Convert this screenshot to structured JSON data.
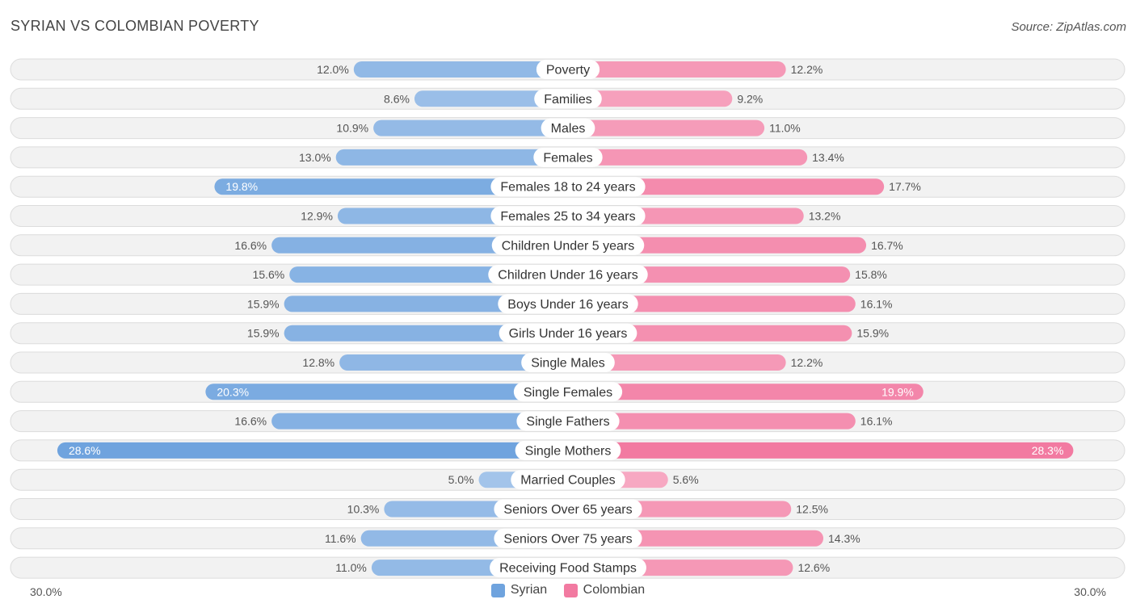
{
  "title": "SYRIAN VS COLOMBIAN POVERTY",
  "source": "Source: ZipAtlas.com",
  "axis": {
    "left_label": "30.0%",
    "right_label": "30.0%"
  },
  "colors": {
    "syrian": "#6fa3de",
    "colombian": "#f27aa1"
  },
  "chart_data": {
    "type": "bar",
    "orientation": "horizontal-diverging",
    "title": "SYRIAN VS COLOMBIAN POVERTY",
    "xlim": [
      0,
      30
    ],
    "unit": "%",
    "categories": [
      "Poverty",
      "Families",
      "Males",
      "Females",
      "Females 18 to 24 years",
      "Females 25 to 34 years",
      "Children Under 5 years",
      "Children Under 16 years",
      "Boys Under 16 years",
      "Girls Under 16 years",
      "Single Males",
      "Single Females",
      "Single Fathers",
      "Single Mothers",
      "Married Couples",
      "Seniors Over 65 years",
      "Seniors Over 75 years",
      "Receiving Food Stamps"
    ],
    "series": [
      {
        "name": "Syrian",
        "values": [
          12.0,
          8.6,
          10.9,
          13.0,
          19.8,
          12.9,
          16.6,
          15.6,
          15.9,
          15.9,
          12.8,
          20.3,
          16.6,
          28.6,
          5.0,
          10.3,
          11.6,
          11.0
        ],
        "labels": [
          "12.0%",
          "8.6%",
          "10.9%",
          "13.0%",
          "19.8%",
          "12.9%",
          "16.6%",
          "15.6%",
          "15.9%",
          "15.9%",
          "12.8%",
          "20.3%",
          "16.6%",
          "28.6%",
          "5.0%",
          "10.3%",
          "11.6%",
          "11.0%"
        ]
      },
      {
        "name": "Colombian",
        "values": [
          12.2,
          9.2,
          11.0,
          13.4,
          17.7,
          13.2,
          16.7,
          15.8,
          16.1,
          15.9,
          12.2,
          19.9,
          16.1,
          28.3,
          5.6,
          12.5,
          14.3,
          12.6
        ],
        "labels": [
          "12.2%",
          "9.2%",
          "11.0%",
          "13.4%",
          "17.7%",
          "13.2%",
          "16.7%",
          "15.8%",
          "16.1%",
          "15.9%",
          "12.2%",
          "19.9%",
          "16.1%",
          "28.3%",
          "5.6%",
          "12.5%",
          "14.3%",
          "12.6%"
        ]
      }
    ],
    "legend": [
      "Syrian",
      "Colombian"
    ]
  }
}
